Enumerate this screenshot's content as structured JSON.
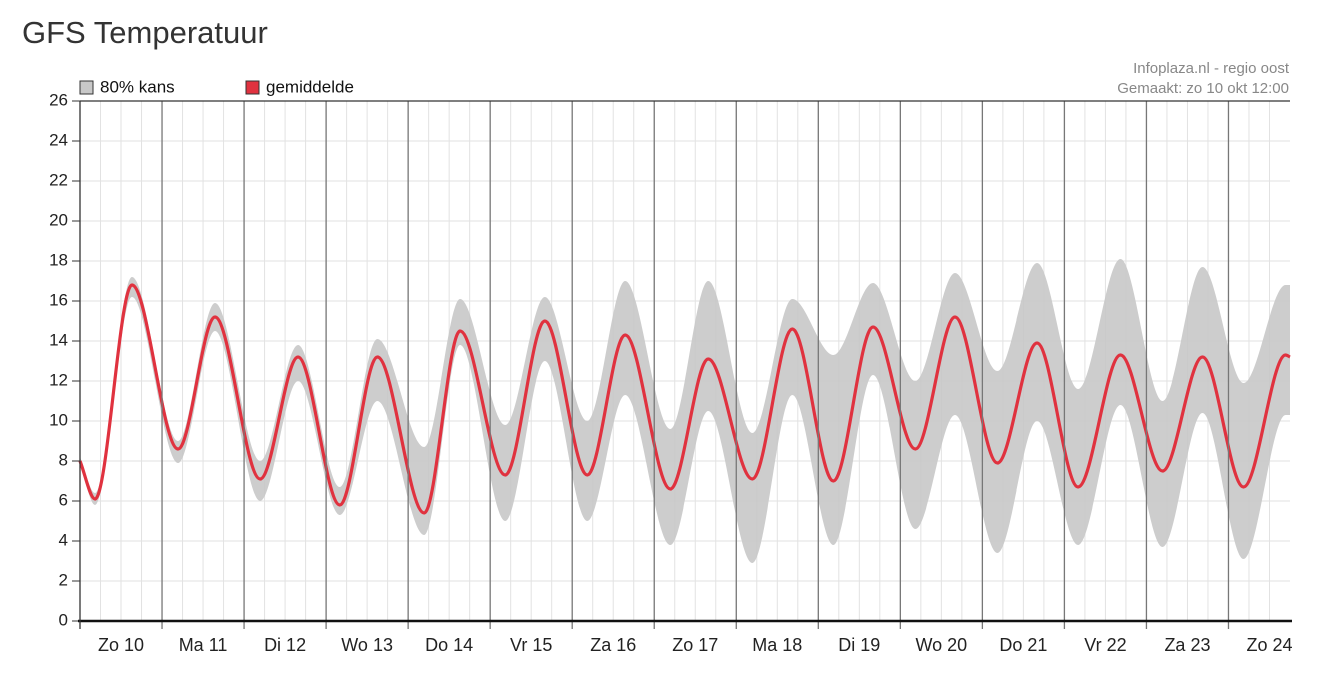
{
  "page_title": "GFS Temperatuur",
  "chart_data": {
    "type": "line",
    "source": "Infoplaza.nl - regio oost",
    "made": "Gemaakt: zo 10 okt 12:00",
    "x": [
      0,
      4.4,
      15.2,
      28.7,
      39.5,
      52.7,
      63.8,
      76,
      87,
      100.7,
      111.2,
      124.4,
      136,
      148.4,
      159.5,
      172.7,
      183.8,
      196.7,
      208.4,
      220.4,
      232,
      244.4,
      256,
      268.4,
      280,
      292,
      304.4,
      316.7,
      328.4,
      340.4,
      352.7,
      354
    ],
    "series": [
      {
        "name": "80% kans",
        "color": "#c8c8c8",
        "lower": [
          7.9,
          5.8,
          16.2,
          7.9,
          14.5,
          6.0,
          12.0,
          5.3,
          11.0,
          4.3,
          13.8,
          5.0,
          13.0,
          5.0,
          11.3,
          3.8,
          10.5,
          2.9,
          11.3,
          3.8,
          12.3,
          4.6,
          10.3,
          3.4,
          10.0,
          3.8,
          10.8,
          3.7,
          10.4,
          3.1,
          10.3,
          10.3
        ],
        "upper": [
          8.2,
          6.4,
          17.2,
          9.0,
          15.9,
          8.0,
          13.8,
          6.7,
          14.1,
          8.7,
          16.1,
          9.8,
          16.2,
          10.0,
          17.0,
          9.6,
          17.0,
          9.4,
          16.1,
          13.3,
          16.9,
          12.0,
          17.4,
          12.5,
          17.9,
          11.6,
          18.1,
          11.0,
          17.7,
          11.9,
          16.8,
          16.8
        ]
      },
      {
        "name": "gemiddelde",
        "color": "#e0323f",
        "values": [
          8.0,
          6.1,
          16.8,
          8.6,
          15.2,
          7.1,
          13.2,
          5.8,
          13.2,
          5.4,
          14.5,
          7.3,
          15.0,
          7.3,
          14.3,
          6.6,
          13.1,
          7.1,
          14.6,
          7.0,
          14.7,
          8.6,
          15.2,
          7.9,
          13.9,
          6.7,
          13.3,
          7.5,
          13.2,
          6.7,
          13.3,
          13.2
        ]
      }
    ],
    "xlim": [
      0,
      354
    ],
    "xticks": [
      {
        "value": 12,
        "label": "Zo 10"
      },
      {
        "value": 36,
        "label": "Ma 11"
      },
      {
        "value": 60,
        "label": "Di 12"
      },
      {
        "value": 84,
        "label": "Wo 13"
      },
      {
        "value": 108,
        "label": "Do 14"
      },
      {
        "value": 132,
        "label": "Vr 15"
      },
      {
        "value": 156,
        "label": "Za 16"
      },
      {
        "value": 180,
        "label": "Zo 17"
      },
      {
        "value": 204,
        "label": "Ma 18"
      },
      {
        "value": 228,
        "label": "Di 19"
      },
      {
        "value": 252,
        "label": "Wo 20"
      },
      {
        "value": 276,
        "label": "Do 21"
      },
      {
        "value": 300,
        "label": "Vr 22"
      },
      {
        "value": 324,
        "label": "Za 23"
      },
      {
        "value": 348,
        "label": "Zo 24"
      }
    ],
    "day_lines": [
      24,
      48,
      72,
      96,
      120,
      144,
      168,
      192,
      216,
      240,
      264,
      288,
      312,
      336
    ],
    "x_minor_step": 6,
    "ylim": [
      0,
      26
    ],
    "yticks": [
      0,
      2,
      4,
      6,
      8,
      10,
      12,
      14,
      16,
      18,
      20,
      22,
      24,
      26
    ],
    "grid": true
  }
}
